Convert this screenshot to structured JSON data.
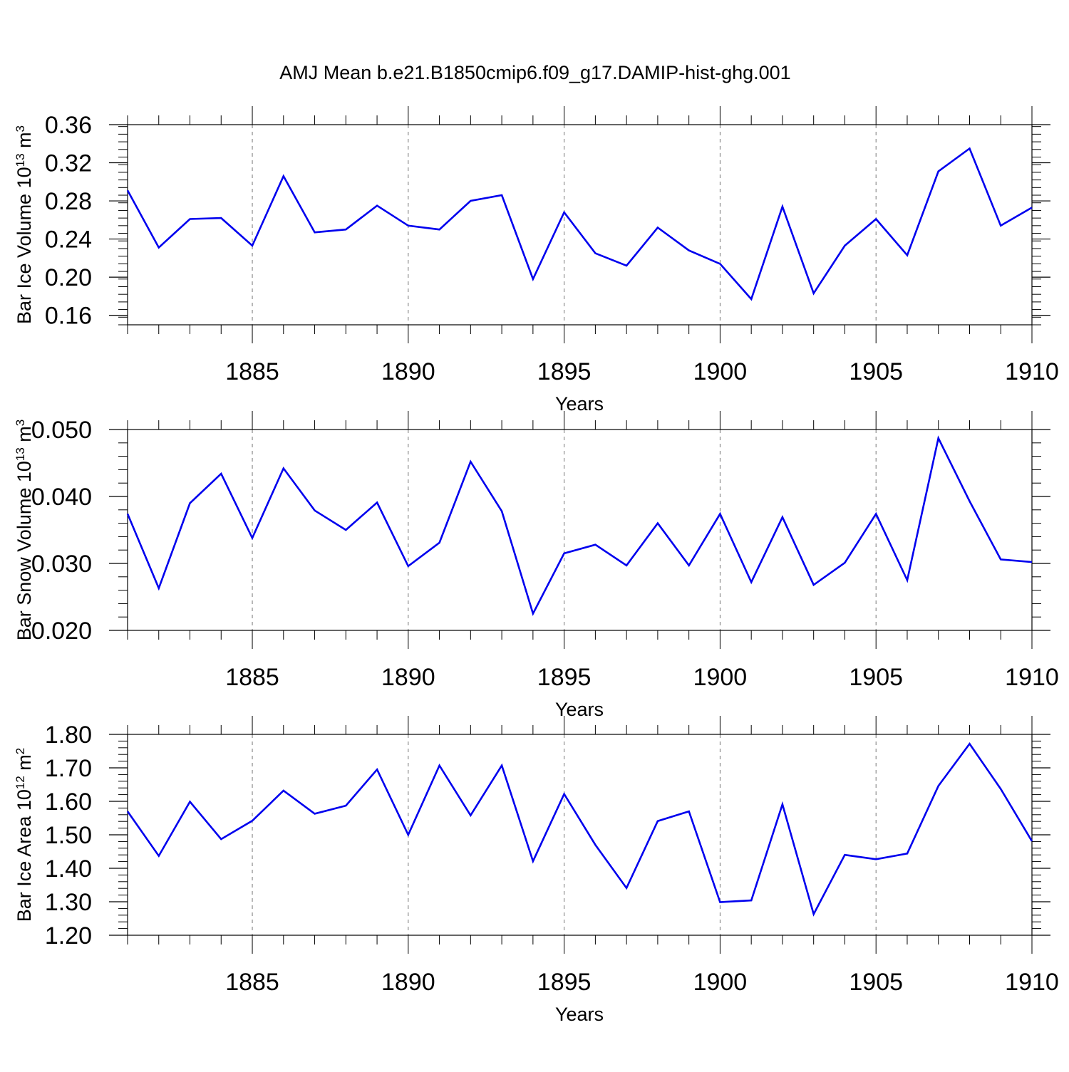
{
  "title": "AMJ Mean b.e21.B1850cmip6.f09_g17.DAMIP-hist-ghg.001",
  "line_color": "#0000ee",
  "chart_data": [
    {
      "type": "line",
      "ylabel": "Bar Ice Volume 10",
      "ylabel_exp": "13",
      "ylabel_unit": " m",
      "ylabel_unit_exp": "3",
      "xlabel": "Years",
      "xlim": [
        1881,
        1910
      ],
      "ylim": [
        0.15,
        0.36
      ],
      "x_ticks": [
        1885,
        1890,
        1895,
        1900,
        1905,
        1910
      ],
      "y_ticks": [
        "0.16",
        "0.20",
        "0.24",
        "0.28",
        "0.32",
        "0.36"
      ],
      "y_minor_step": 0.008,
      "grid": "vertical dashed at major x ticks",
      "x": [
        1881,
        1882,
        1883,
        1884,
        1885,
        1886,
        1887,
        1888,
        1889,
        1890,
        1891,
        1892,
        1893,
        1894,
        1895,
        1896,
        1897,
        1898,
        1899,
        1900,
        1901,
        1902,
        1903,
        1904,
        1905,
        1906,
        1907,
        1908,
        1909,
        1910
      ],
      "values": [
        0.291,
        0.231,
        0.261,
        0.262,
        0.233,
        0.306,
        0.247,
        0.25,
        0.275,
        0.254,
        0.25,
        0.28,
        0.286,
        0.198,
        0.268,
        0.225,
        0.212,
        0.252,
        0.228,
        0.214,
        0.177,
        0.274,
        0.183,
        0.233,
        0.261,
        0.223,
        0.311,
        0.335,
        0.254,
        0.273
      ]
    },
    {
      "type": "line",
      "ylabel": "Bar Snow Volume 10",
      "ylabel_exp": "13",
      "ylabel_unit": " m",
      "ylabel_unit_exp": "3",
      "xlabel": "Years",
      "xlim": [
        1881,
        1910
      ],
      "ylim": [
        0.02,
        0.05
      ],
      "x_ticks": [
        1885,
        1890,
        1895,
        1900,
        1905,
        1910
      ],
      "y_ticks": [
        "0.020",
        "0.030",
        "0.040",
        "0.050"
      ],
      "y_minor_step": 0.002,
      "grid": "vertical dashed at major x ticks",
      "x": [
        1881,
        1882,
        1883,
        1884,
        1885,
        1886,
        1887,
        1888,
        1889,
        1890,
        1891,
        1892,
        1893,
        1894,
        1895,
        1896,
        1897,
        1898,
        1899,
        1900,
        1901,
        1902,
        1903,
        1904,
        1905,
        1906,
        1907,
        1908,
        1909,
        1910
      ],
      "values": [
        0.0374,
        0.0263,
        0.039,
        0.0434,
        0.0338,
        0.0442,
        0.0379,
        0.035,
        0.0391,
        0.0296,
        0.0331,
        0.0452,
        0.0378,
        0.0225,
        0.0315,
        0.0328,
        0.0297,
        0.036,
        0.0297,
        0.0374,
        0.0272,
        0.0369,
        0.0268,
        0.0301,
        0.0374,
        0.0275,
        0.0487,
        0.0393,
        0.0306,
        0.0302
      ]
    },
    {
      "type": "line",
      "ylabel": "Bar Ice Area 10",
      "ylabel_exp": "12",
      "ylabel_unit": " m",
      "ylabel_unit_exp": "2",
      "xlabel": "Years",
      "xlim": [
        1881,
        1910
      ],
      "ylim": [
        1.2,
        1.8
      ],
      "x_ticks": [
        1885,
        1890,
        1895,
        1900,
        1905,
        1910
      ],
      "y_ticks": [
        "1.20",
        "1.30",
        "1.40",
        "1.50",
        "1.60",
        "1.70",
        "1.80"
      ],
      "y_minor_step": 0.02,
      "grid": "vertical dashed at major x ticks",
      "x": [
        1881,
        1882,
        1883,
        1884,
        1885,
        1886,
        1887,
        1888,
        1889,
        1890,
        1891,
        1892,
        1893,
        1894,
        1895,
        1896,
        1897,
        1898,
        1899,
        1900,
        1901,
        1902,
        1903,
        1904,
        1905,
        1906,
        1907,
        1908,
        1909,
        1910
      ],
      "values": [
        1.57,
        1.437,
        1.599,
        1.487,
        1.542,
        1.632,
        1.563,
        1.587,
        1.695,
        1.5,
        1.707,
        1.558,
        1.707,
        1.421,
        1.622,
        1.47,
        1.341,
        1.541,
        1.57,
        1.299,
        1.304,
        1.591,
        1.263,
        1.44,
        1.427,
        1.444,
        1.646,
        1.772,
        1.637,
        1.481
      ]
    }
  ]
}
